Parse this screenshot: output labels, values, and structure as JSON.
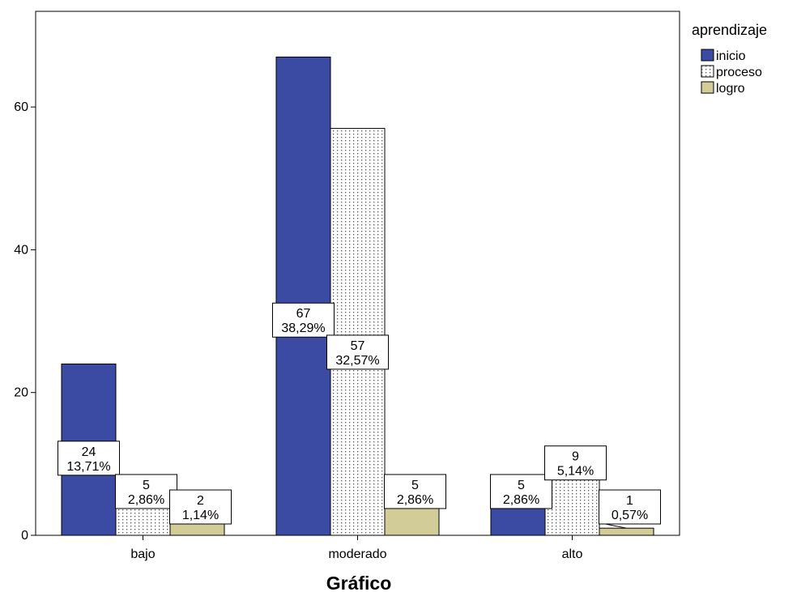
{
  "chart_data": {
    "type": "bar",
    "title": "",
    "xlabel": "Gráfico",
    "ylabel": "",
    "categories": [
      "bajo",
      "moderado",
      "alto"
    ],
    "ylim": [
      0,
      73.4
    ],
    "yticks": [
      "0",
      "20",
      "40",
      "60"
    ],
    "grid": false,
    "legend": {
      "title": "aprendizaje",
      "placement": "top-right outside"
    },
    "series": [
      {
        "name": "inicio",
        "color": "#3b4ba3",
        "pattern": "solid",
        "values": [
          24,
          67,
          5
        ],
        "labels": [
          [
            "24",
            "13,71%"
          ],
          [
            "67",
            "38,29%"
          ],
          [
            "5",
            "2,86%"
          ]
        ]
      },
      {
        "name": "proceso",
        "color": "#ffffff",
        "pattern": "dotted",
        "values": [
          5,
          57,
          9
        ],
        "labels": [
          [
            "5",
            "2,86%"
          ],
          [
            "57",
            "32,57%"
          ],
          [
            "9",
            "5,14%"
          ]
        ]
      },
      {
        "name": "logro",
        "color": "#d2cc98",
        "pattern": "solid",
        "values": [
          2,
          5,
          1
        ],
        "labels": [
          [
            "2",
            "1,14%"
          ],
          [
            "5",
            "2,86%"
          ],
          [
            "1",
            "0,57%"
          ]
        ]
      }
    ]
  }
}
